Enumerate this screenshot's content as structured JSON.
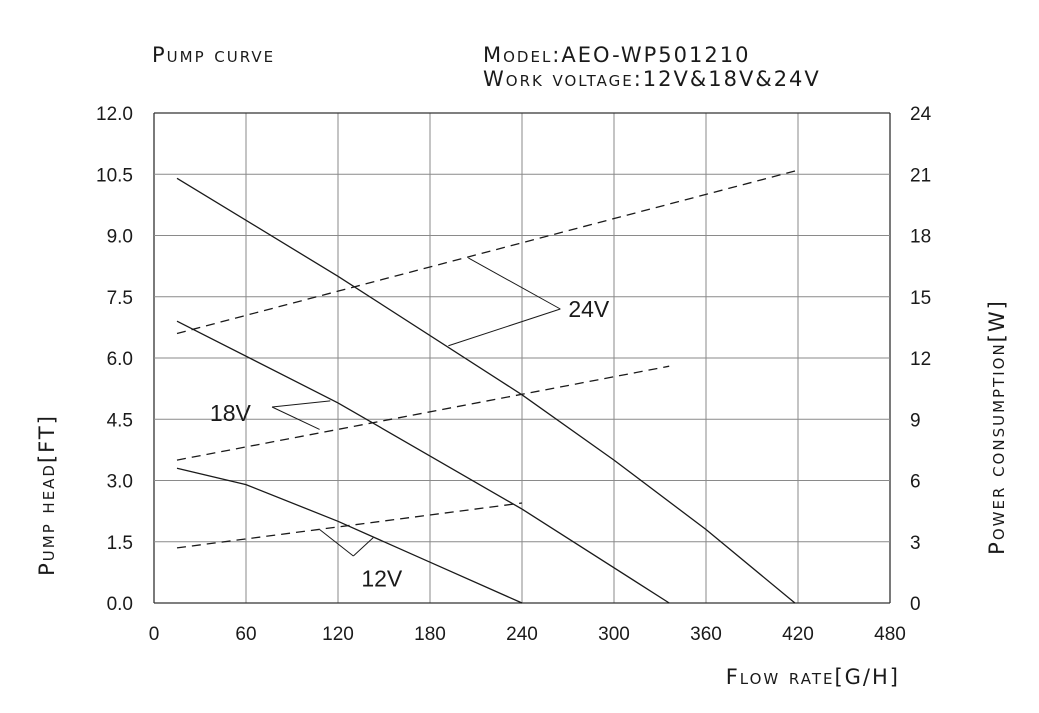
{
  "chart_data": {
    "type": "line",
    "title": "Pump curve",
    "model_line": "Model:AEO-WP501210",
    "voltage_line": "Work voltage:12V&18V&24V",
    "xlabel": "Flow rate[G/H]",
    "ylabel_left": "Pump head[FT]",
    "ylabel_right": "Power consumption[W]",
    "xlim": [
      0,
      480
    ],
    "ylim_left": [
      0,
      12
    ],
    "ylim_right": [
      0,
      24
    ],
    "grid": true,
    "x_ticks": [
      "0",
      "60",
      "120",
      "180",
      "240",
      "300",
      "360",
      "420",
      "480"
    ],
    "y_left_ticks": [
      "0.0",
      "1.5",
      "3.0",
      "4.5",
      "6.0",
      "7.5",
      "9.0",
      "10.5",
      "12.0"
    ],
    "y_right_ticks": [
      "0",
      "3",
      "6",
      "9",
      "12",
      "15",
      "18",
      "21",
      "24"
    ],
    "series": [
      {
        "name": "24V",
        "kind": "head",
        "axis": "left",
        "style": "solid",
        "points": [
          [
            15,
            10.4
          ],
          [
            120,
            8.0
          ],
          [
            240,
            5.1
          ],
          [
            300,
            3.5
          ],
          [
            360,
            1.8
          ],
          [
            418,
            0.0
          ]
        ]
      },
      {
        "name": "18V",
        "kind": "head",
        "axis": "left",
        "style": "solid",
        "points": [
          [
            15,
            6.9
          ],
          [
            120,
            4.9
          ],
          [
            240,
            2.3
          ],
          [
            336,
            0.0
          ]
        ]
      },
      {
        "name": "12V",
        "kind": "head",
        "axis": "left",
        "style": "solid",
        "points": [
          [
            15,
            3.3
          ],
          [
            60,
            2.9
          ],
          [
            120,
            2.0
          ],
          [
            180,
            1.0
          ],
          [
            240,
            0.0
          ]
        ]
      },
      {
        "name": "24V",
        "kind": "power",
        "axis": "right",
        "style": "dashed",
        "points": [
          [
            15,
            13.2
          ],
          [
            420,
            21.2
          ]
        ]
      },
      {
        "name": "18V",
        "kind": "power",
        "axis": "right",
        "style": "dashed",
        "points": [
          [
            15,
            7.0
          ],
          [
            336,
            11.6
          ]
        ]
      },
      {
        "name": "12V",
        "kind": "power",
        "axis": "right",
        "style": "dashed",
        "points": [
          [
            15,
            2.7
          ],
          [
            240,
            4.9
          ]
        ]
      }
    ],
    "annotations": [
      {
        "text": "24V",
        "label_at": [
          265,
          7.2
        ],
        "elbow": [
          265,
          7.2
        ],
        "pointers": [
          [
            205,
            8.45
          ],
          [
            192,
            6.3
          ]
        ]
      },
      {
        "text": "18V",
        "label_at": [
          43,
          4.7
        ],
        "elbow": [
          77,
          4.8
        ],
        "pointers": [
          [
            115,
            4.95
          ],
          [
            108,
            4.25
          ]
        ]
      },
      {
        "text": "12V",
        "label_at": [
          130,
          0.65
        ],
        "elbow": [
          130,
          1.15
        ],
        "pointers": [
          [
            108,
            1.8
          ],
          [
            143,
            1.6
          ]
        ]
      }
    ]
  }
}
